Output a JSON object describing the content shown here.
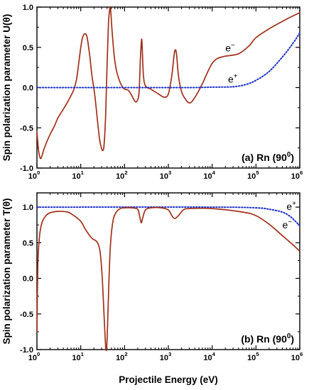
{
  "chart_data": {
    "x_scale": "log",
    "xlim": [
      1,
      1000000
    ],
    "xlabel": "Projectile Energy (eV)",
    "x_tick_labels": [
      {
        "base": "10",
        "exp": "0"
      },
      {
        "base": "10",
        "exp": "1"
      },
      {
        "base": "10",
        "exp": "2"
      },
      {
        "base": "10",
        "exp": "3"
      },
      {
        "base": "10",
        "exp": "4"
      },
      {
        "base": "10",
        "exp": "5"
      },
      {
        "base": "10",
        "exp": "6"
      }
    ],
    "colors": {
      "electron": "#a0301a",
      "positron": "#1a2fc8"
    },
    "panels": [
      {
        "type": "line",
        "label": "(a) Rn (90",
        "label_sup": "0",
        "label_close": ")",
        "ylabel": "Spin polarization parameter U(θ)",
        "ylim": [
          -1.0,
          1.0
        ],
        "y_tick_labels": [
          "1.0",
          "0.5",
          "0.0",
          "-0.5",
          "-1.0"
        ],
        "y_ticks": [
          1.0,
          0.5,
          0.0,
          -0.5,
          -1.0
        ],
        "series": [
          {
            "name": "e⁻",
            "name_base": "e",
            "name_sup": "−",
            "style": "solid",
            "label_at": [
              20000,
              0.45
            ],
            "points": [
              [
                1.0,
                -0.55
              ],
              [
                1.1,
                -0.8
              ],
              [
                1.2,
                -0.88
              ],
              [
                1.3,
                -0.85
              ],
              [
                1.5,
                -0.74
              ],
              [
                2.0,
                -0.58
              ],
              [
                2.5,
                -0.48
              ],
              [
                3.0,
                -0.38
              ],
              [
                4.0,
                -0.27
              ],
              [
                5.0,
                -0.18
              ],
              [
                6.0,
                -0.1
              ],
              [
                7.0,
                -0.02
              ],
              [
                8.0,
                0.1
              ],
              [
                9.0,
                0.3
              ],
              [
                10.0,
                0.5
              ],
              [
                11.0,
                0.62
              ],
              [
                12.5,
                0.67
              ],
              [
                14.0,
                0.62
              ],
              [
                16.0,
                0.4
              ],
              [
                18.0,
                0.15
              ],
              [
                21.0,
                -0.1
              ],
              [
                24.0,
                -0.4
              ],
              [
                27.0,
                -0.65
              ],
              [
                30.0,
                -0.76
              ],
              [
                32.0,
                -0.78
              ],
              [
                34.0,
                -0.72
              ],
              [
                37.0,
                -0.35
              ],
              [
                40.0,
                0.3
              ],
              [
                43.0,
                0.8
              ],
              [
                46.0,
                0.98
              ],
              [
                48.0,
                0.97
              ],
              [
                52.0,
                0.7
              ],
              [
                58.0,
                0.4
              ],
              [
                65.0,
                0.22
              ],
              [
                75.0,
                0.1
              ],
              [
                85.0,
                0.03
              ],
              [
                100.0,
                -0.02
              ],
              [
                120.0,
                -0.03
              ],
              [
                140.0,
                -0.08
              ],
              [
                160.0,
                -0.14
              ],
              [
                180.0,
                -0.18
              ],
              [
                200.0,
                -0.15
              ],
              [
                215.0,
                -0.05
              ],
              [
                230.0,
                0.35
              ],
              [
                245.0,
                0.6
              ],
              [
                255.0,
                0.45
              ],
              [
                270.0,
                0.15
              ],
              [
                300.0,
                0.02
              ],
              [
                400.0,
                -0.02
              ],
              [
                600.0,
                -0.08
              ],
              [
                800.0,
                -0.12
              ],
              [
                1000.0,
                -0.08
              ],
              [
                1200.0,
                0.15
              ],
              [
                1350.0,
                0.4
              ],
              [
                1450.0,
                0.47
              ],
              [
                1550.0,
                0.4
              ],
              [
                1700.0,
                0.15
              ],
              [
                2000.0,
                -0.05
              ],
              [
                2500.0,
                -0.15
              ],
              [
                3000.0,
                -0.19
              ],
              [
                3500.0,
                -0.17
              ],
              [
                4500.0,
                -0.08
              ],
              [
                6000.0,
                0.05
              ],
              [
                8000.0,
                0.2
              ],
              [
                10000.0,
                0.3
              ],
              [
                13000.0,
                0.36
              ],
              [
                20000.0,
                0.39
              ],
              [
                40000.0,
                0.42
              ],
              [
                70000.0,
                0.52
              ],
              [
                100000.0,
                0.62
              ],
              [
                200000.0,
                0.73
              ],
              [
                500000.0,
                0.85
              ],
              [
                1000000.0,
                0.93
              ]
            ]
          },
          {
            "name": "e⁺",
            "name_base": "e",
            "name_sup": "+",
            "style": "dotted",
            "label_at": [
              23000,
              0.06
            ],
            "points": [
              [
                1.0,
                0.0
              ],
              [
                100.0,
                0.0
              ],
              [
                3000.0,
                0.0
              ],
              [
                10000.0,
                0.005
              ],
              [
                30000.0,
                0.01
              ],
              [
                60000.0,
                0.04
              ],
              [
                100000.0,
                0.09
              ],
              [
                200000.0,
                0.2
              ],
              [
                400000.0,
                0.38
              ],
              [
                700000.0,
                0.55
              ],
              [
                1000000.0,
                0.68
              ]
            ]
          }
        ]
      },
      {
        "type": "line",
        "label": "(b) Rn (90",
        "label_sup": "0",
        "label_close": ")",
        "ylabel": "Spin polarization parameter T(θ)",
        "ylim": [
          -1.0,
          1.2
        ],
        "y_tick_labels": [
          "1.0",
          "0.5",
          "0.0",
          "-0.5",
          "-1.0"
        ],
        "y_ticks": [
          1.0,
          0.5,
          0.0,
          -0.5,
          -1.0
        ],
        "series": [
          {
            "name": "e⁺",
            "name_base": "e",
            "name_sup": "+",
            "style": "dotted",
            "label_at": [
              500000,
              0.96
            ],
            "points": [
              [
                1.0,
                1.0
              ],
              [
                10000.0,
                1.0
              ],
              [
                100000.0,
                0.99
              ],
              [
                200000.0,
                0.97
              ],
              [
                400000.0,
                0.93
              ],
              [
                600000.0,
                0.87
              ],
              [
                800000.0,
                0.8
              ],
              [
                1000000.0,
                0.74
              ]
            ]
          },
          {
            "name": "e⁻",
            "name_base": "e",
            "name_sup": "−",
            "style": "solid",
            "label_at": [
              400000,
              0.7
            ],
            "points": [
              [
                1.0,
                -0.75
              ],
              [
                1.05,
                0.2
              ],
              [
                1.15,
                0.6
              ],
              [
                1.3,
                0.78
              ],
              [
                1.6,
                0.88
              ],
              [
                2.0,
                0.92
              ],
              [
                3.0,
                0.94
              ],
              [
                5.0,
                0.93
              ],
              [
                7.0,
                0.88
              ],
              [
                10.0,
                0.8
              ],
              [
                13.0,
                0.68
              ],
              [
                16.0,
                0.6
              ],
              [
                19.0,
                0.55
              ],
              [
                22.0,
                0.53
              ],
              [
                25.0,
                0.48
              ],
              [
                28.0,
                0.35
              ],
              [
                31.0,
                0.0
              ],
              [
                34.0,
                -0.5
              ],
              [
                37.0,
                -0.95
              ],
              [
                39.0,
                -0.98
              ],
              [
                41.0,
                -0.65
              ],
              [
                44.0,
                -0.05
              ],
              [
                48.0,
                0.5
              ],
              [
                55.0,
                0.82
              ],
              [
                65.0,
                0.93
              ],
              [
                80.0,
                0.98
              ],
              [
                100.0,
                0.99
              ],
              [
                150.0,
                0.99
              ],
              [
                200.0,
                0.97
              ],
              [
                220.0,
                0.88
              ],
              [
                240.0,
                0.78
              ],
              [
                260.0,
                0.85
              ],
              [
                300.0,
                0.96
              ],
              [
                400.0,
                0.99
              ],
              [
                700.0,
                0.99
              ],
              [
                1000.0,
                0.96
              ],
              [
                1200.0,
                0.88
              ],
              [
                1400.0,
                0.84
              ],
              [
                1700.0,
                0.88
              ],
              [
                2200.0,
                0.96
              ],
              [
                3000.0,
                0.98
              ],
              [
                10000.0,
                0.98
              ],
              [
                50000.0,
                0.93
              ],
              [
                100000.0,
                0.88
              ],
              [
                200000.0,
                0.76
              ],
              [
                400000.0,
                0.6
              ],
              [
                700000.0,
                0.47
              ],
              [
                1000000.0,
                0.38
              ]
            ]
          }
        ]
      }
    ]
  }
}
